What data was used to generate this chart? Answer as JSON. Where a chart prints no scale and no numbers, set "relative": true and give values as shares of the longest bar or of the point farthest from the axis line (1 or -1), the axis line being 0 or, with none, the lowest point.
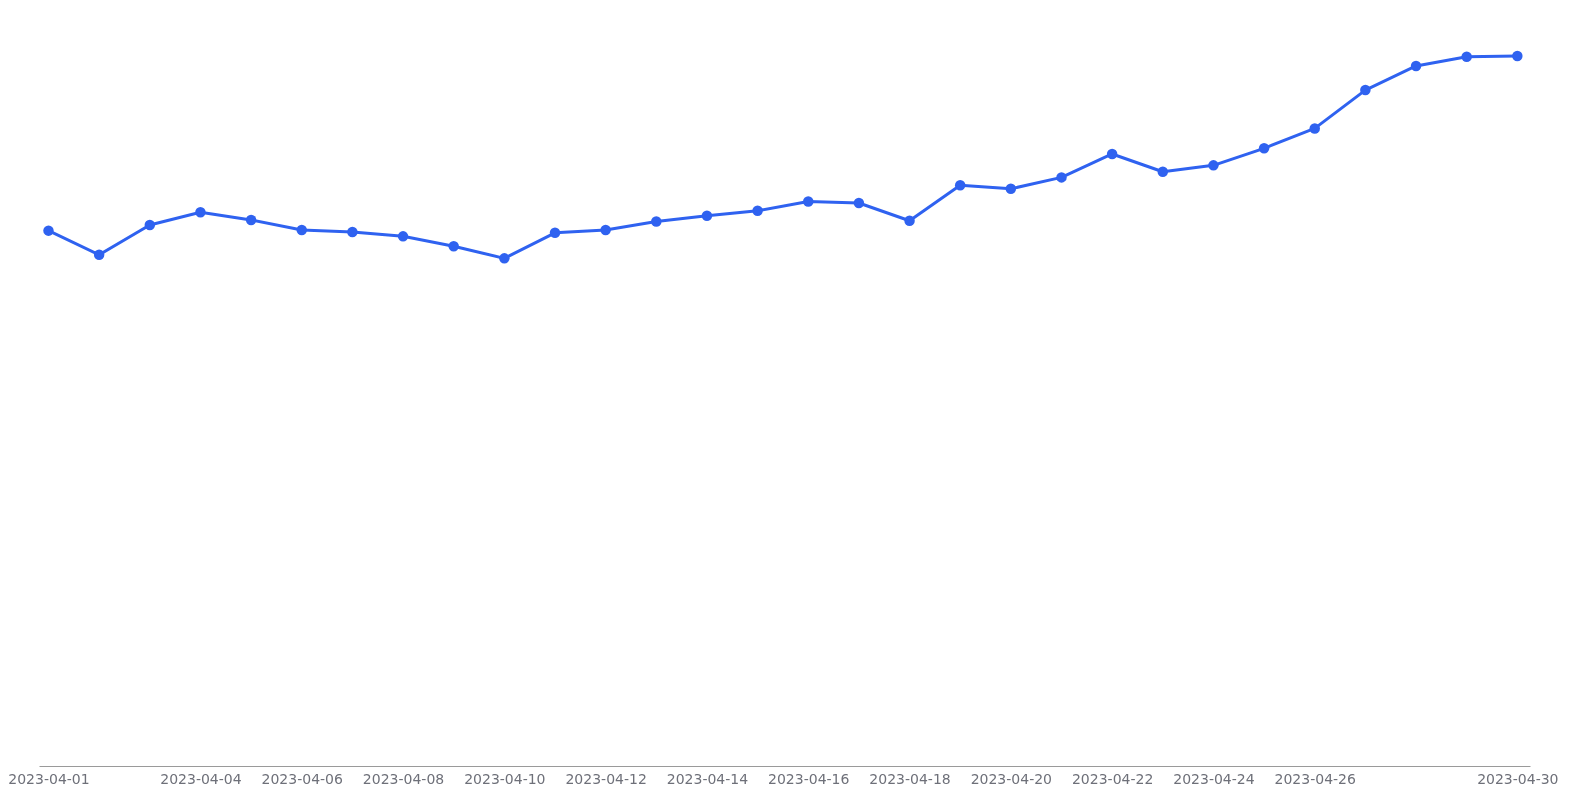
{
  "chart_data": {
    "type": "line",
    "relative": true,
    "marker": "circle",
    "line_style": "solid",
    "grid": false,
    "legend": false,
    "x": [
      "2023-04-01",
      "2023-04-02",
      "2023-04-03",
      "2023-04-04",
      "2023-04-05",
      "2023-04-06",
      "2023-04-07",
      "2023-04-08",
      "2023-04-09",
      "2023-04-10",
      "2023-04-11",
      "2023-04-12",
      "2023-04-13",
      "2023-04-14",
      "2023-04-15",
      "2023-04-16",
      "2023-04-17",
      "2023-04-18",
      "2023-04-19",
      "2023-04-20",
      "2023-04-21",
      "2023-04-22",
      "2023-04-23",
      "2023-04-24",
      "2023-04-25",
      "2023-04-26",
      "2023-04-27",
      "2023-04-28",
      "2023-04-29",
      "2023-04-30"
    ],
    "xlim": [
      "2023-03-31T19:30",
      "2023-04-30T06:00"
    ],
    "xticks": [
      "2023-04-01",
      "2023-04-04",
      "2023-04-06",
      "2023-04-08",
      "2023-04-10",
      "2023-04-12",
      "2023-04-14",
      "2023-04-16",
      "2023-04-18",
      "2023-04-20",
      "2023-04-22",
      "2023-04-24",
      "2023-04-26",
      "2023-04-30"
    ],
    "series": [
      {
        "color": "#2f62f0",
        "values": [
          0.754,
          0.72,
          0.762,
          0.78,
          0.769,
          0.755,
          0.752,
          0.746,
          0.732,
          0.715,
          0.751,
          0.755,
          0.767,
          0.775,
          0.782,
          0.795,
          0.793,
          0.768,
          0.818,
          0.813,
          0.829,
          0.862,
          0.837,
          0.846,
          0.87,
          0.898,
          0.952,
          0.986,
          0.999,
          1.0
        ]
      }
    ]
  }
}
